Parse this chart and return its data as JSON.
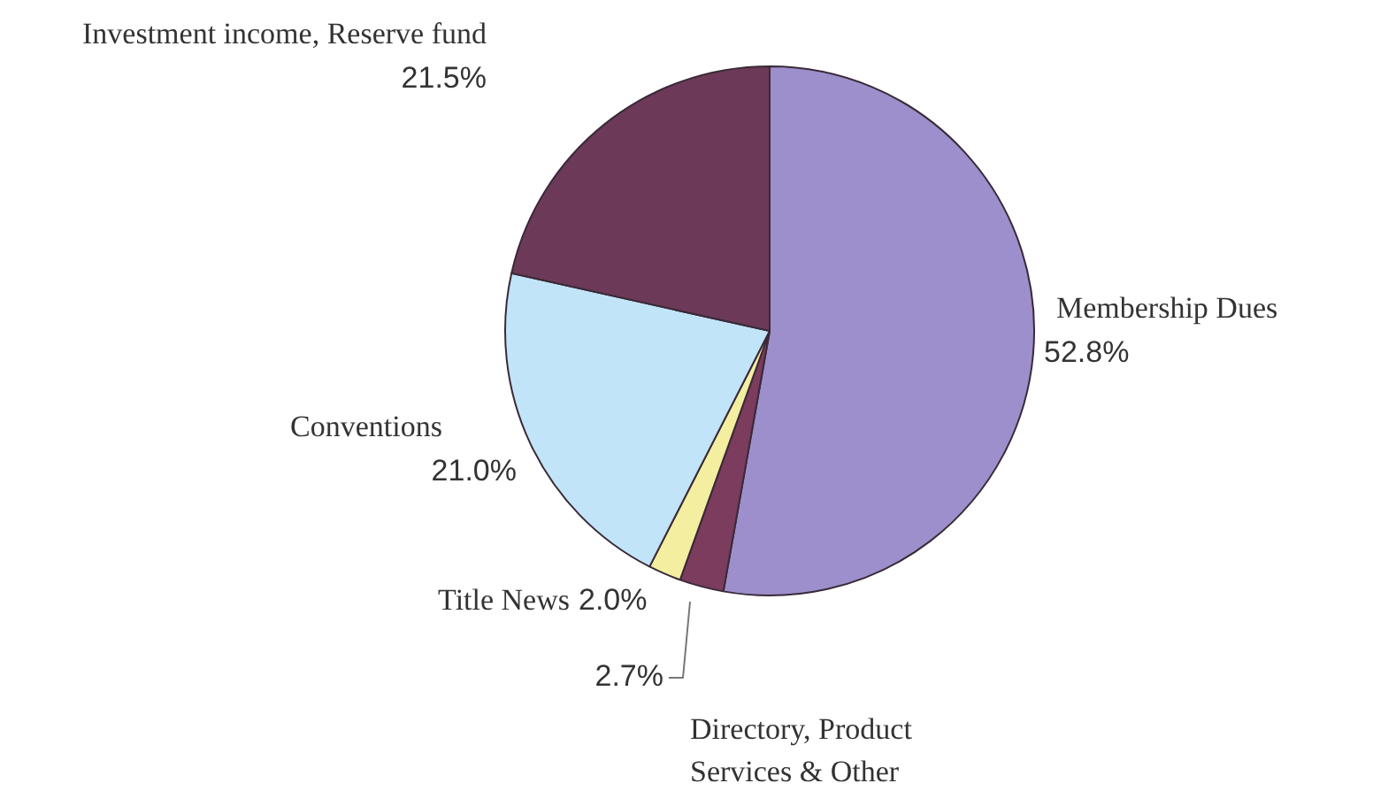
{
  "chart_data": {
    "type": "pie",
    "categories": [
      "Membership Dues",
      "Directory, Product\nServices & Other",
      "Title News",
      "Conventions",
      "Investment income, Reserve fund"
    ],
    "values": [
      52.8,
      2.7,
      2.0,
      21.0,
      21.5
    ],
    "value_labels": [
      "52.8%",
      "2.7%",
      "2.0%",
      "21.0%",
      "21.5%"
    ],
    "colors": [
      "#9c8fcc",
      "#7b3c5e",
      "#f3eea0",
      "#c2e4f8",
      "#6c3a58"
    ]
  }
}
